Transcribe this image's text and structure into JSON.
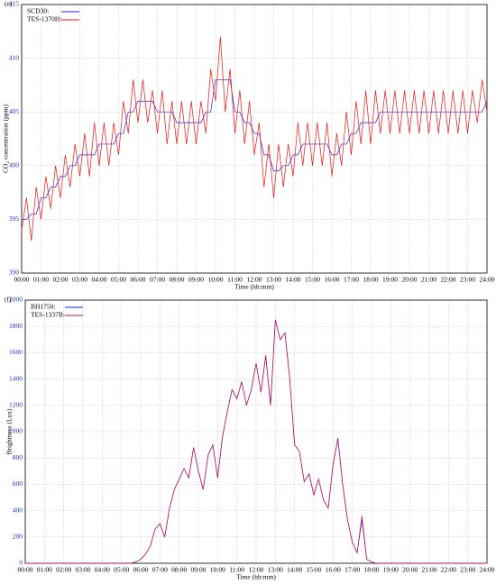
{
  "chart_data": [
    {
      "type": "line",
      "panel_label": "(e)",
      "xlabel": "Time (hh:mm)",
      "ylabel": "CO₂ concentration (ppm)",
      "grid": true,
      "legend": "upper left",
      "xlim": [
        0,
        24
      ],
      "ylim": [
        390,
        415
      ],
      "xticks": [
        {
          "value": 0,
          "label": "00:00"
        },
        {
          "value": 1,
          "label": "01:00"
        },
        {
          "value": 2,
          "label": "02:00"
        },
        {
          "value": 3,
          "label": "03:00"
        },
        {
          "value": 4,
          "label": "04:00"
        },
        {
          "value": 5,
          "label": "05:00"
        },
        {
          "value": 6,
          "label": "06:00"
        },
        {
          "value": 7,
          "label": "07:00"
        },
        {
          "value": 8,
          "label": "08:00"
        },
        {
          "value": 9,
          "label": "09:00"
        },
        {
          "value": 10,
          "label": "10:00"
        },
        {
          "value": 11,
          "label": "11:00"
        },
        {
          "value": 12,
          "label": "12:00"
        },
        {
          "value": 13,
          "label": "13:00"
        },
        {
          "value": 14,
          "label": "14:00"
        },
        {
          "value": 15,
          "label": "15:00"
        },
        {
          "value": 16,
          "label": "16:00"
        },
        {
          "value": 17,
          "label": "17:00"
        },
        {
          "value": 18,
          "label": "18:00"
        },
        {
          "value": 19,
          "label": "19:00"
        },
        {
          "value": 20,
          "label": "20:00"
        },
        {
          "value": 21,
          "label": "21:00"
        },
        {
          "value": 22,
          "label": "22:00"
        },
        {
          "value": 23,
          "label": "23:00"
        },
        {
          "value": 24,
          "label": "24:00"
        }
      ],
      "yticks": [
        390,
        395,
        400,
        405,
        410,
        415
      ],
      "x": [
        0,
        0.25,
        0.5,
        0.75,
        1,
        1.25,
        1.5,
        1.75,
        2,
        2.25,
        2.5,
        2.75,
        3,
        3.25,
        3.5,
        3.75,
        4,
        4.25,
        4.5,
        4.75,
        5,
        5.25,
        5.5,
        5.75,
        6,
        6.25,
        6.5,
        6.75,
        7,
        7.25,
        7.5,
        7.75,
        8,
        8.25,
        8.5,
        8.75,
        9,
        9.25,
        9.5,
        9.75,
        10,
        10.25,
        10.5,
        10.75,
        11,
        11.25,
        11.5,
        11.75,
        12,
        12.25,
        12.5,
        12.75,
        13,
        13.25,
        13.5,
        13.75,
        14,
        14.25,
        14.5,
        14.75,
        15,
        15.25,
        15.5,
        15.75,
        16,
        16.25,
        16.5,
        16.75,
        17,
        17.25,
        17.5,
        17.75,
        18,
        18.25,
        18.5,
        18.75,
        19,
        19.25,
        19.5,
        19.75,
        20,
        20.25,
        20.5,
        20.75,
        21,
        21.25,
        21.5,
        21.75,
        22,
        22.25,
        22.5,
        22.75,
        23,
        23.25,
        23.5,
        23.75,
        24
      ],
      "series": [
        {
          "name": "SCD30:",
          "color": "#2222dd",
          "values": [
            395,
            395,
            395.5,
            395.5,
            397,
            397,
            398,
            398,
            399,
            399,
            400,
            400,
            401,
            401,
            401,
            401,
            402,
            402,
            402,
            402,
            403,
            403,
            405,
            405,
            406,
            406,
            406,
            406,
            405,
            405,
            405,
            405,
            404,
            404,
            404,
            404,
            404,
            404,
            405,
            405,
            408,
            408,
            408,
            408,
            405,
            405,
            404,
            404,
            403,
            403,
            401,
            401,
            399.5,
            399.5,
            400,
            400,
            401,
            401,
            402,
            402,
            402,
            402,
            402,
            402,
            401,
            401,
            402,
            402,
            403,
            403,
            404,
            404,
            404,
            404,
            405,
            405,
            405,
            405,
            405,
            405,
            405,
            405,
            405,
            405,
            405,
            405,
            405,
            405,
            405,
            405,
            405,
            405,
            405,
            405,
            405,
            405,
            406
          ]
        },
        {
          "name": "TES-1370H:",
          "color": "#ee1111",
          "values": [
            394,
            397,
            393,
            398,
            395,
            399,
            396,
            400,
            397,
            401,
            398,
            402,
            399,
            403,
            399,
            404,
            400,
            404,
            400,
            404,
            401,
            406,
            403,
            408,
            404,
            408,
            404,
            407,
            403,
            407,
            402,
            406,
            402,
            406,
            402,
            406,
            402,
            406,
            403,
            409,
            406,
            412,
            405,
            409,
            403,
            407,
            402,
            406,
            401,
            404,
            398,
            402,
            397,
            402,
            398,
            402,
            399,
            404,
            400,
            404,
            400,
            404,
            400,
            404,
            399,
            403,
            400,
            405,
            401,
            406,
            402,
            407,
            402,
            407,
            403,
            407,
            403,
            407,
            403,
            407,
            403,
            407,
            403,
            407,
            403,
            407,
            403,
            407,
            403,
            407,
            403,
            407,
            403,
            407,
            404,
            408,
            405
          ]
        }
      ]
    },
    {
      "type": "line",
      "panel_label": "(f)",
      "xlabel": "Time (hh:mm)",
      "ylabel": "Brightness (Lux)",
      "grid": true,
      "legend": "upper left",
      "xlim": [
        0,
        24
      ],
      "ylim": [
        0,
        2000
      ],
      "xticks": [
        {
          "value": 0,
          "label": "00:00"
        },
        {
          "value": 1,
          "label": "01:00"
        },
        {
          "value": 2,
          "label": "02:00"
        },
        {
          "value": 3,
          "label": "03:00"
        },
        {
          "value": 4,
          "label": "04:00"
        },
        {
          "value": 5,
          "label": "05:00"
        },
        {
          "value": 6,
          "label": "06:00"
        },
        {
          "value": 7,
          "label": "07:00"
        },
        {
          "value": 8,
          "label": "08:00"
        },
        {
          "value": 9,
          "label": "09:00"
        },
        {
          "value": 10,
          "label": "10:00"
        },
        {
          "value": 11,
          "label": "11:00"
        },
        {
          "value": 12,
          "label": "12:00"
        },
        {
          "value": 13,
          "label": "13:00"
        },
        {
          "value": 14,
          "label": "14:00"
        },
        {
          "value": 15,
          "label": "15:00"
        },
        {
          "value": 16,
          "label": "16:00"
        },
        {
          "value": 17,
          "label": "17:00"
        },
        {
          "value": 18,
          "label": "18:00"
        },
        {
          "value": 19,
          "label": "19:00"
        },
        {
          "value": 20,
          "label": "20:00"
        },
        {
          "value": 21,
          "label": "21:00"
        },
        {
          "value": 22,
          "label": "22:00"
        },
        {
          "value": 23,
          "label": "23:00"
        },
        {
          "value": 24,
          "label": "24:00"
        }
      ],
      "yticks": [
        0,
        200,
        400,
        600,
        800,
        1000,
        1200,
        1400,
        1600,
        1800,
        2000
      ],
      "x": [
        0,
        0.25,
        0.5,
        0.75,
        1,
        1.25,
        1.5,
        1.75,
        2,
        2.25,
        2.5,
        2.75,
        3,
        3.25,
        3.5,
        3.75,
        4,
        4.25,
        4.5,
        4.75,
        5,
        5.25,
        5.5,
        5.75,
        6,
        6.25,
        6.5,
        6.75,
        7,
        7.25,
        7.5,
        7.75,
        8,
        8.25,
        8.5,
        8.75,
        9,
        9.25,
        9.5,
        9.75,
        10,
        10.25,
        10.5,
        10.75,
        11,
        11.25,
        11.5,
        11.75,
        12,
        12.25,
        12.5,
        12.75,
        13,
        13.25,
        13.5,
        13.75,
        14,
        14.25,
        14.5,
        14.75,
        15,
        15.25,
        15.5,
        15.75,
        16,
        16.25,
        16.5,
        16.75,
        17,
        17.25,
        17.5,
        17.75,
        18,
        18.25,
        18.5,
        18.75,
        19,
        19.25,
        19.5,
        19.75,
        20,
        20.25,
        20.5,
        20.75,
        21,
        21.25,
        21.5,
        21.75,
        22,
        22.25,
        22.5,
        22.75,
        23,
        23.25,
        23.5,
        23.75,
        24
      ],
      "series": [
        {
          "name": "BH1750:",
          "color": "#2222dd",
          "values": [
            0,
            0,
            0,
            0,
            0,
            0,
            0,
            0,
            0,
            0,
            0,
            0,
            0,
            0,
            0,
            0,
            0,
            0,
            0,
            0,
            0,
            0,
            0,
            10,
            30,
            70,
            130,
            260,
            300,
            200,
            420,
            560,
            640,
            720,
            650,
            880,
            700,
            560,
            820,
            900,
            650,
            960,
            1150,
            1320,
            1250,
            1380,
            1200,
            1320,
            1520,
            1300,
            1580,
            1200,
            1850,
            1700,
            1750,
            1400,
            900,
            850,
            620,
            680,
            520,
            640,
            480,
            420,
            750,
            950,
            600,
            330,
            160,
            80,
            330,
            30,
            10,
            0,
            0,
            0,
            0,
            0,
            0,
            0,
            0,
            0,
            0,
            0,
            0,
            0,
            0,
            0,
            0,
            0,
            0,
            0,
            0,
            0,
            0,
            0,
            0
          ]
        },
        {
          "name": "TES-1337B:",
          "color": "#cc1144",
          "values": [
            0,
            0,
            0,
            0,
            0,
            0,
            0,
            0,
            0,
            0,
            0,
            0,
            0,
            0,
            0,
            0,
            0,
            0,
            0,
            0,
            0,
            0,
            0,
            10,
            30,
            70,
            130,
            260,
            300,
            200,
            420,
            560,
            640,
            720,
            650,
            880,
            700,
            560,
            820,
            900,
            650,
            960,
            1150,
            1320,
            1250,
            1380,
            1200,
            1320,
            1520,
            1300,
            1580,
            1200,
            1850,
            1700,
            1750,
            1400,
            900,
            850,
            620,
            680,
            520,
            640,
            480,
            420,
            750,
            950,
            600,
            330,
            160,
            80,
            360,
            30,
            10,
            0,
            0,
            0,
            0,
            0,
            0,
            0,
            0,
            0,
            0,
            0,
            0,
            0,
            0,
            0,
            0,
            0,
            0,
            0,
            0,
            0,
            0,
            0,
            0
          ]
        }
      ]
    }
  ]
}
